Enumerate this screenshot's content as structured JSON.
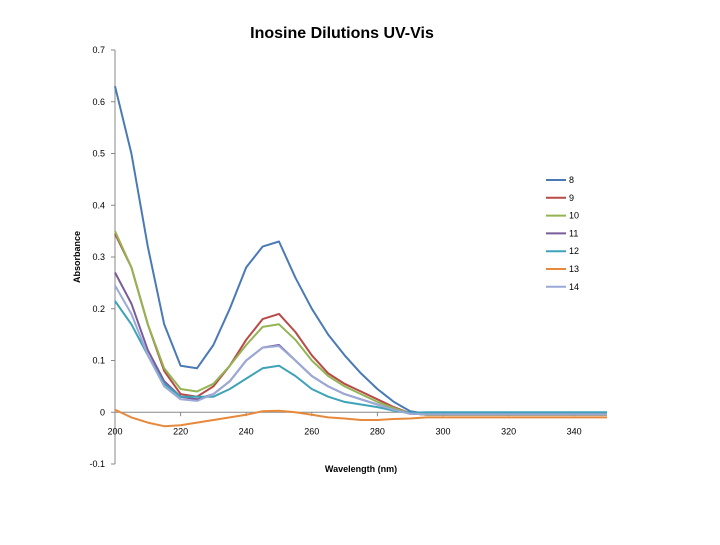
{
  "chart_data": {
    "type": "line",
    "title": "Inosine Dilutions UV-Vis",
    "xlabel": "Wavelength (nm)",
    "ylabel": "Absorbance",
    "xlim": [
      200,
      350
    ],
    "ylim": [
      -0.1,
      0.7
    ],
    "xticks": [
      200,
      220,
      240,
      260,
      280,
      300,
      320,
      340
    ],
    "yticks": [
      -0.1,
      0,
      0.1,
      0.2,
      0.3,
      0.4,
      0.5,
      0.6,
      0.7
    ],
    "grid": false,
    "legend": "right",
    "x": [
      200,
      205,
      210,
      215,
      220,
      225,
      230,
      235,
      240,
      245,
      250,
      255,
      260,
      265,
      270,
      275,
      280,
      285,
      290,
      295,
      300,
      305,
      310,
      315,
      320,
      325,
      330,
      335,
      340,
      345,
      350
    ],
    "series": [
      {
        "name": "8",
        "color": "#4a7ab5",
        "values": [
          0.63,
          0.5,
          0.32,
          0.17,
          0.09,
          0.085,
          0.13,
          0.2,
          0.28,
          0.32,
          0.33,
          0.26,
          0.2,
          0.15,
          0.11,
          0.075,
          0.045,
          0.02,
          0.002,
          -0.003,
          -0.003,
          -0.003,
          -0.003,
          -0.003,
          -0.003,
          -0.003,
          -0.003,
          -0.003,
          -0.003,
          -0.003,
          -0.003
        ]
      },
      {
        "name": "9",
        "color": "#b84a47",
        "values": [
          0.345,
          0.28,
          0.17,
          0.08,
          0.035,
          0.03,
          0.05,
          0.09,
          0.14,
          0.18,
          0.19,
          0.155,
          0.11,
          0.075,
          0.055,
          0.04,
          0.025,
          0.01,
          -0.002,
          -0.005,
          -0.005,
          -0.005,
          -0.005,
          -0.005,
          -0.005,
          -0.005,
          -0.005,
          -0.005,
          -0.005,
          -0.005,
          -0.005
        ]
      },
      {
        "name": "10",
        "color": "#93b453",
        "values": [
          0.35,
          0.28,
          0.17,
          0.085,
          0.045,
          0.04,
          0.055,
          0.09,
          0.13,
          0.165,
          0.17,
          0.14,
          0.1,
          0.07,
          0.05,
          0.035,
          0.02,
          0.008,
          -0.002,
          -0.005,
          -0.005,
          -0.005,
          -0.005,
          -0.005,
          -0.005,
          -0.005,
          -0.005,
          -0.005,
          -0.005,
          -0.005,
          -0.005
        ]
      },
      {
        "name": "11",
        "color": "#7b5c9b",
        "values": [
          0.27,
          0.21,
          0.12,
          0.06,
          0.03,
          0.025,
          0.035,
          0.06,
          0.1,
          0.125,
          0.13,
          0.1,
          0.07,
          0.05,
          0.035,
          0.025,
          0.015,
          0.005,
          -0.003,
          -0.004,
          -0.004,
          -0.004,
          -0.004,
          -0.004,
          -0.004,
          -0.004,
          -0.004,
          -0.004,
          -0.004,
          -0.004,
          -0.004
        ]
      },
      {
        "name": "12",
        "color": "#3fa3b8",
        "values": [
          0.215,
          0.17,
          0.11,
          0.055,
          0.03,
          0.03,
          0.03,
          0.045,
          0.065,
          0.085,
          0.09,
          0.07,
          0.045,
          0.03,
          0.02,
          0.015,
          0.01,
          0.003,
          -0.001,
          0,
          0,
          0,
          0,
          0,
          0,
          0,
          0,
          0,
          0,
          0,
          0
        ]
      },
      {
        "name": "13",
        "color": "#e7893c",
        "values": [
          0.005,
          -0.01,
          -0.02,
          -0.027,
          -0.025,
          -0.02,
          -0.015,
          -0.01,
          -0.005,
          0.002,
          0.003,
          0.0,
          -0.005,
          -0.01,
          -0.012,
          -0.015,
          -0.015,
          -0.013,
          -0.012,
          -0.01,
          -0.01,
          -0.01,
          -0.01,
          -0.01,
          -0.01,
          -0.01,
          -0.01,
          -0.01,
          -0.01,
          -0.01,
          -0.01
        ]
      },
      {
        "name": "14",
        "color": "#9aa9d6",
        "values": [
          0.245,
          0.19,
          0.11,
          0.05,
          0.025,
          0.022,
          0.035,
          0.06,
          0.1,
          0.125,
          0.128,
          0.1,
          0.07,
          0.05,
          0.035,
          0.025,
          0.015,
          0.005,
          -0.003,
          -0.004,
          -0.004,
          -0.004,
          -0.004,
          -0.004,
          -0.004,
          -0.004,
          -0.004,
          -0.004,
          -0.004,
          -0.004,
          -0.004
        ]
      }
    ]
  }
}
